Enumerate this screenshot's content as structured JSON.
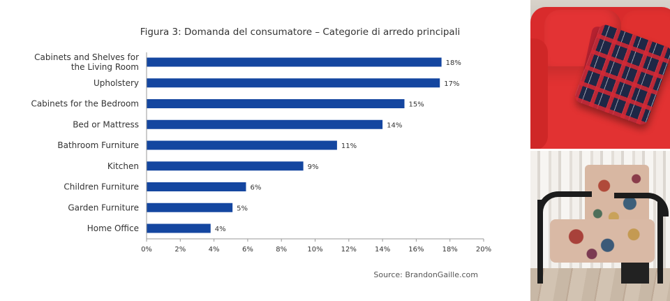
{
  "chart_data": {
    "type": "bar",
    "orientation": "horizontal",
    "title": "Figura 3: Domanda del consumatore – Categorie di arredo principali",
    "categories": [
      "Cabinets and Shelves for the Living Room",
      "Upholstery",
      "Cabinets for the Bedroom",
      "Bed or Mattress",
      "Bathroom Furniture",
      "Kitchen",
      "Children Furniture",
      "Garden Furniture",
      "Home Office"
    ],
    "category_lines": [
      [
        "Cabinets and Shelves for",
        "the Living Room"
      ],
      [
        "Upholstery"
      ],
      [
        "Cabinets for the Bedroom"
      ],
      [
        "Bed or Mattress"
      ],
      [
        "Bathroom Furniture"
      ],
      [
        "Kitchen"
      ],
      [
        "Children Furniture"
      ],
      [
        "Garden Furniture"
      ],
      [
        "Home Office"
      ]
    ],
    "values": [
      17.5,
      17.4,
      15.3,
      14.0,
      11.3,
      9.3,
      5.9,
      5.1,
      3.8
    ],
    "value_labels": [
      "18%",
      "17%",
      "15%",
      "14%",
      "11%",
      "9%",
      "6%",
      "5%",
      "4%"
    ],
    "xlim": [
      0,
      20
    ],
    "xticks": [
      "0%",
      "2%",
      "4%",
      "6%",
      "8%",
      "10%",
      "12%",
      "14%",
      "16%",
      "18%",
      "20%"
    ],
    "xlabel": "",
    "ylabel": "",
    "grid": false,
    "bar_color": "#1446a0"
  },
  "source": "Source:  BrandonGaille.com",
  "photos": {
    "top": "sofa-photo",
    "bottom": "armchair-photo"
  }
}
